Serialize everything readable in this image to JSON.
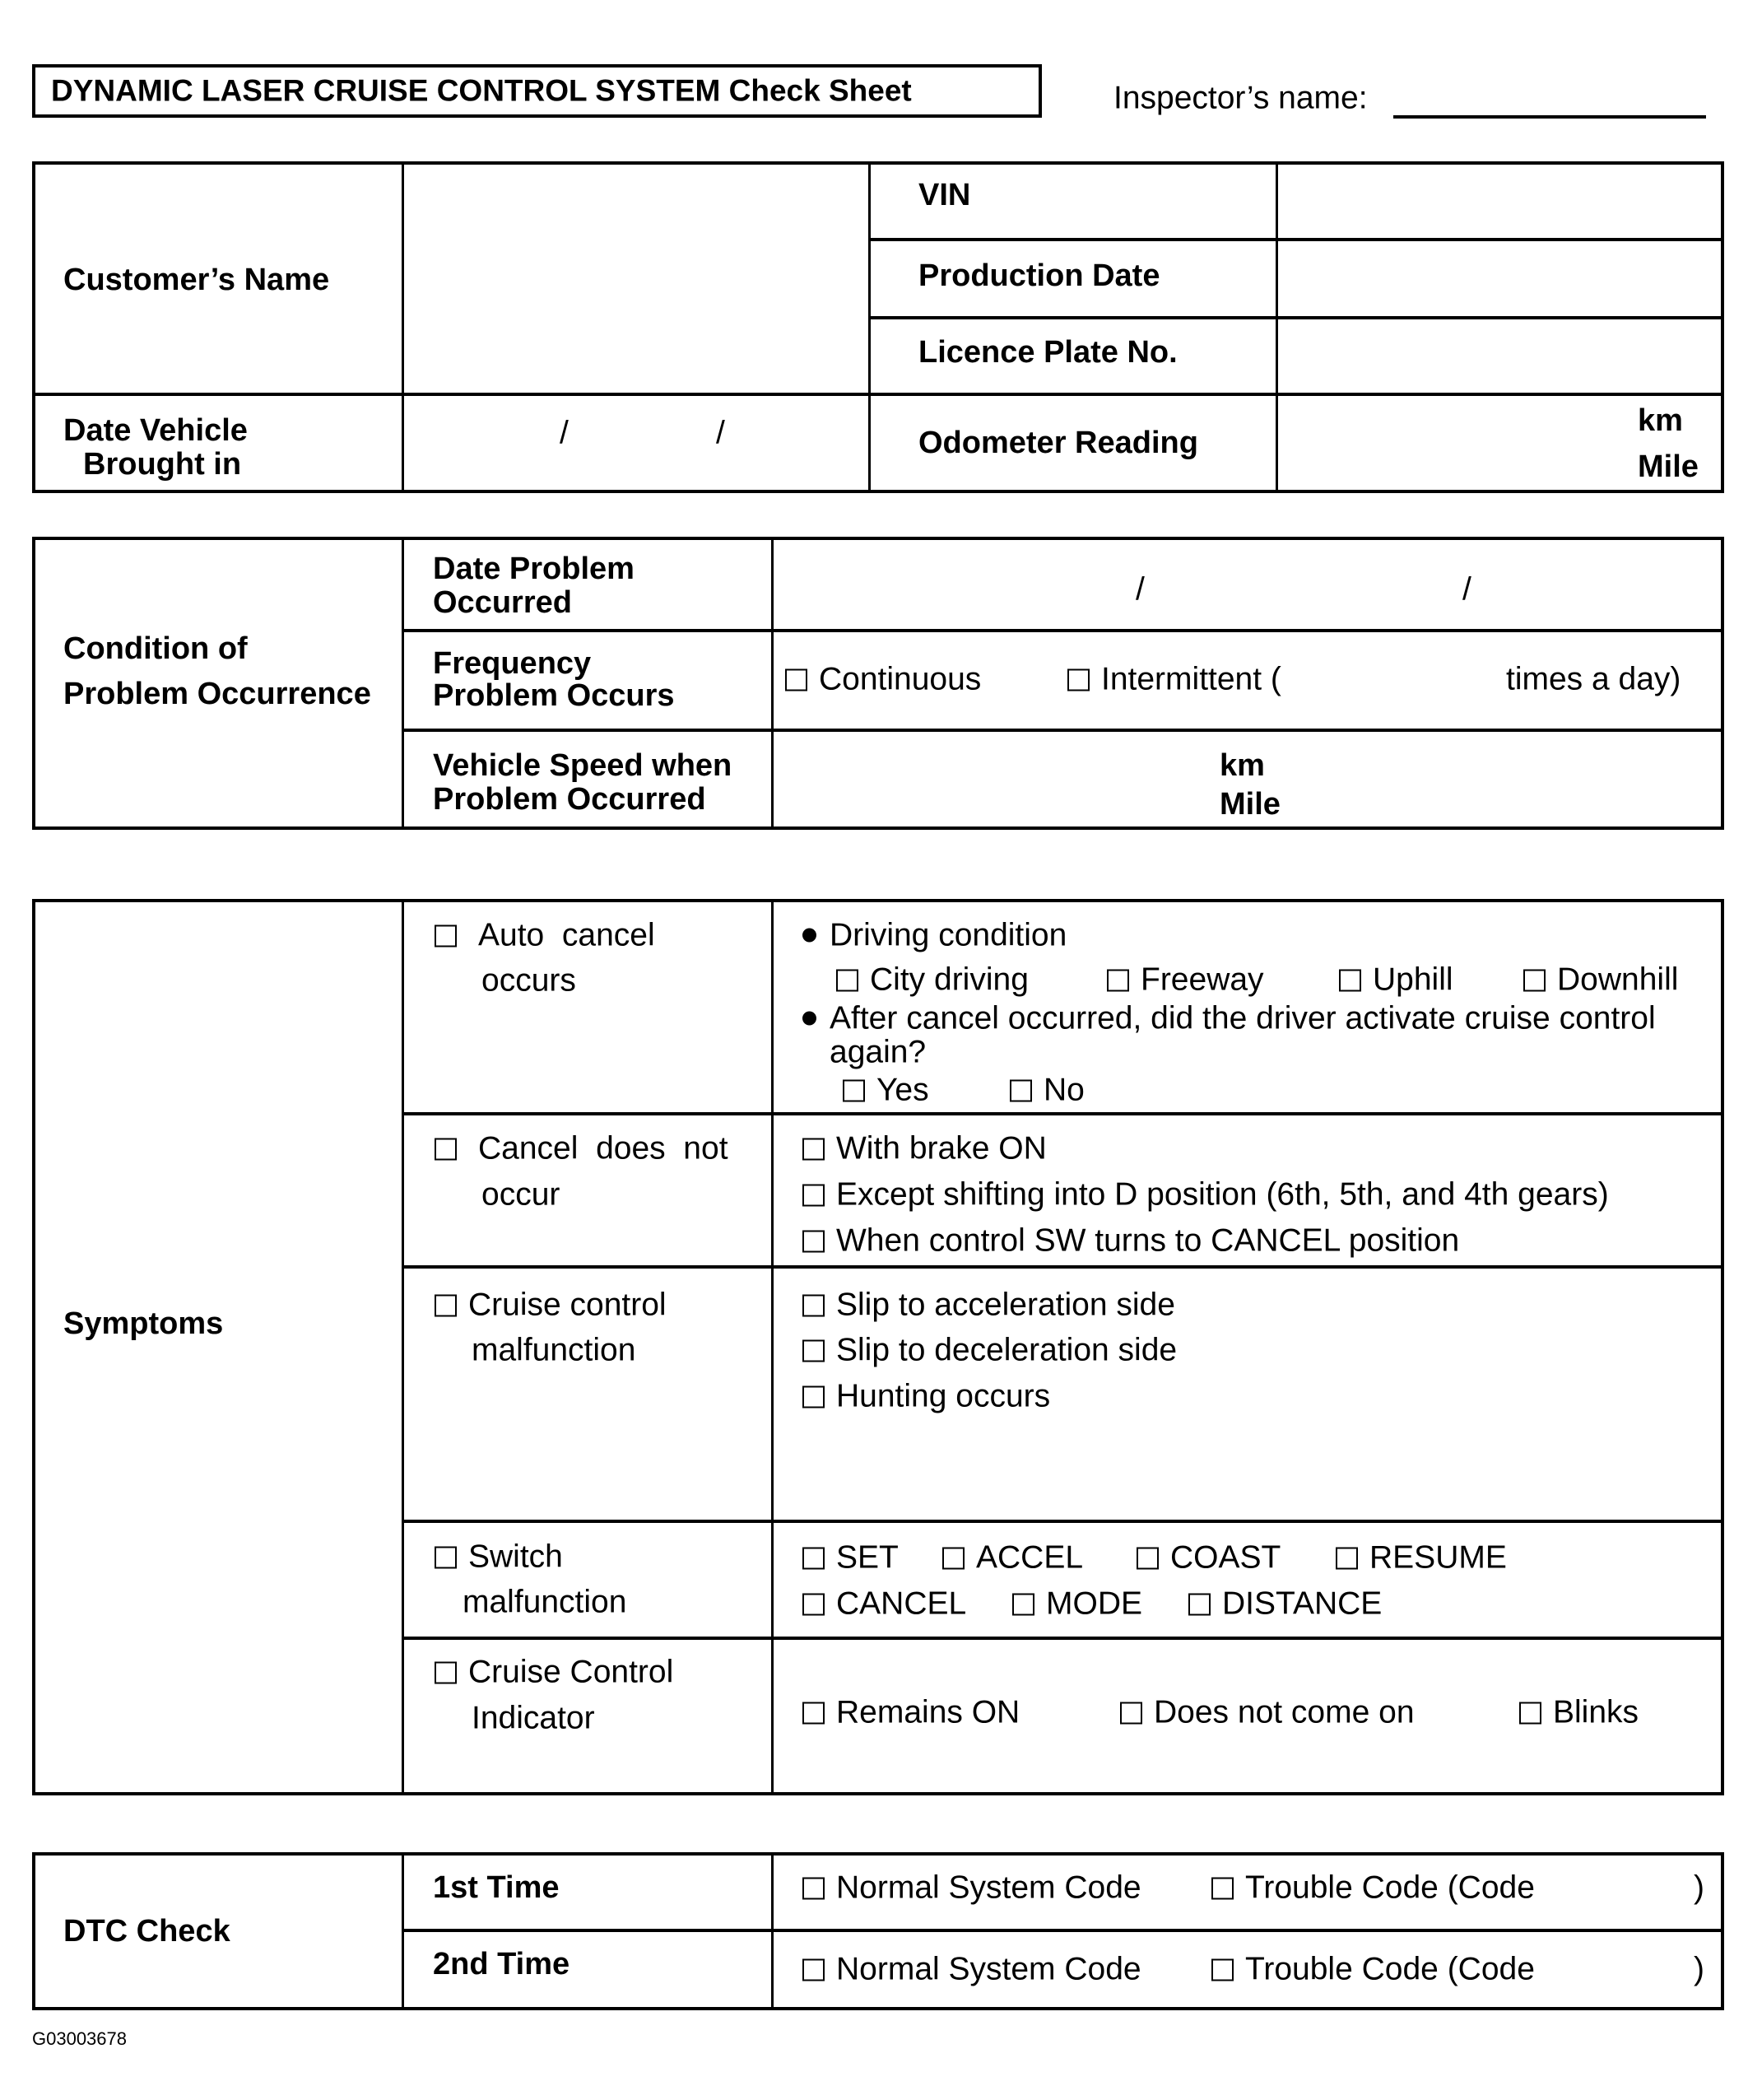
{
  "header": {
    "title": "DYNAMIC LASER CRUISE CONTROL SYSTEM Check Sheet",
    "inspector_label": "Inspector’s name:"
  },
  "vehicle_info": {
    "customer_name_label": "Customer’s Name",
    "vin_label": "VIN",
    "production_date_label": "Production Date",
    "licence_plate_label": "Licence Plate No.",
    "date_brought_in_label_line1": "Date Vehicle",
    "date_brought_in_label_line2": "Brought in",
    "date_separator": "/",
    "odometer_label": "Odometer Reading",
    "unit_km": "km",
    "unit_mile": "Mile"
  },
  "condition": {
    "label_line1": "Condition of",
    "label_line2": "Problem Occurrence",
    "date_problem_line1": "Date Problem",
    "date_problem_line2": "Occurred",
    "date_separator": "/",
    "frequency_line1": "Frequency",
    "frequency_line2": "Problem Occurs",
    "continuous": "Continuous",
    "intermittent": "Intermittent (",
    "times_a_day": "times a day)",
    "speed_line1": "Vehicle Speed when",
    "speed_line2": "Problem Occurred",
    "unit_km": "km",
    "unit_mile": "Mile"
  },
  "symptoms": {
    "label": "Symptoms",
    "auto_cancel": {
      "label_line1": "Auto  cancel",
      "label_line2": "occurs",
      "driving_condition": "Driving condition",
      "options": [
        "City driving",
        "Freeway",
        "Uphill",
        "Downhill"
      ],
      "question_line1": "After cancel occurred, did the driver activate cruise control",
      "question_line2": "again?",
      "answers": [
        "Yes",
        "No"
      ]
    },
    "cancel_not_occur": {
      "label_line1": "Cancel  does  not",
      "label_line2": "occur",
      "options": [
        "With brake ON",
        "Except shifting into D position (6th, 5th, and 4th gears)",
        "When control SW turns to CANCEL position"
      ]
    },
    "cruise_malfunction": {
      "label_line1": "Cruise control",
      "label_line2": "malfunction",
      "options": [
        "Slip to acceleration side",
        "Slip to deceleration side",
        "Hunting occurs"
      ]
    },
    "switch_malfunction": {
      "label_line1": "Switch",
      "label_line2": "malfunction",
      "options": [
        "SET",
        "ACCEL",
        "COAST",
        "RESUME",
        "CANCEL",
        "MODE",
        "DISTANCE"
      ]
    },
    "indicator": {
      "label_line1": "Cruise Control",
      "label_line2": "Indicator",
      "options": [
        "Remains ON",
        "Does not come on",
        "Blinks"
      ]
    }
  },
  "dtc": {
    "label": "DTC Check",
    "rows": [
      {
        "label": "1st Time",
        "normal": "Normal System Code",
        "trouble": "Trouble Code (Code",
        "close": ")"
      },
      {
        "label": "2nd Time",
        "normal": "Normal System Code",
        "trouble": "Trouble Code (Code",
        "close": ")"
      }
    ]
  },
  "footer": {
    "figure_code": "G03003678"
  }
}
